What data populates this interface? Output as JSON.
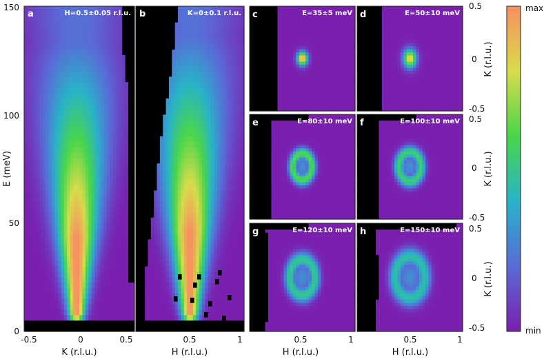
{
  "chart_data": [
    {
      "panel": "a",
      "type": "heatmap",
      "annotation": "H=0.5±0.05 r.l.u.",
      "xlabel": "K (r.l.u.)",
      "ylabel": "E (meV)",
      "xlim": [
        -0.5,
        0.55
      ],
      "ylim": [
        -2,
        152
      ],
      "xticks": [
        "-0.5",
        "0",
        "0.5"
      ],
      "yticks": [
        "0",
        "50",
        "100",
        "150"
      ],
      "intensity_center_x": 0.0,
      "peak_energy_range_meV": [
        5,
        42
      ]
    },
    {
      "panel": "b",
      "type": "heatmap",
      "annotation": "K=0±0.1 r.l.u.",
      "xlabel": "H (r.l.u.)",
      "xlim": [
        0,
        1
      ],
      "ylim": [
        -2,
        152
      ],
      "xticks": [
        "0.5",
        "1"
      ],
      "intensity_center_x": 0.5,
      "peak_energy_range_meV": [
        5,
        45
      ]
    },
    {
      "panel": "c",
      "type": "heatmap",
      "annotation": "E=35±5 meV",
      "center": [
        0.5,
        0
      ],
      "radius": [
        0.07,
        0.1
      ],
      "ring": false,
      "peak": 0.98
    },
    {
      "panel": "d",
      "type": "heatmap",
      "annotation": "E=50±10 meV",
      "center": [
        0.5,
        0
      ],
      "radius": [
        0.09,
        0.14
      ],
      "ring": false,
      "peak": 0.85
    },
    {
      "panel": "e",
      "type": "heatmap",
      "annotation": "E=80±10 meV",
      "center": [
        0.5,
        0
      ],
      "radius": [
        0.13,
        0.2
      ],
      "ring": true,
      "peak": 0.62
    },
    {
      "panel": "f",
      "type": "heatmap",
      "annotation": "E=100±10 meV",
      "center": [
        0.5,
        0
      ],
      "radius": [
        0.15,
        0.22
      ],
      "ring": true,
      "peak": 0.55
    },
    {
      "panel": "g",
      "type": "heatmap",
      "annotation": "E=120±10 meV",
      "center": [
        0.5,
        0
      ],
      "radius": [
        0.17,
        0.26
      ],
      "ring": true,
      "peak": 0.5
    },
    {
      "panel": "h",
      "type": "heatmap",
      "annotation": "E=150±10 meV",
      "center": [
        0.5,
        0
      ],
      "radius": [
        0.2,
        0.3
      ],
      "ring": true,
      "peak": 0.46
    }
  ],
  "small_axes": {
    "xlabel": "H (r.l.u.)",
    "ylabel": "K (r.l.u.)",
    "xticks": [
      "0.5",
      "1"
    ],
    "yticks": [
      "0.5",
      "0",
      "-0.5"
    ]
  },
  "colorbar": {
    "max_label": "max",
    "min_label": "min"
  },
  "colors": {
    "background": "#7a1fb0",
    "mask": "#000000"
  }
}
